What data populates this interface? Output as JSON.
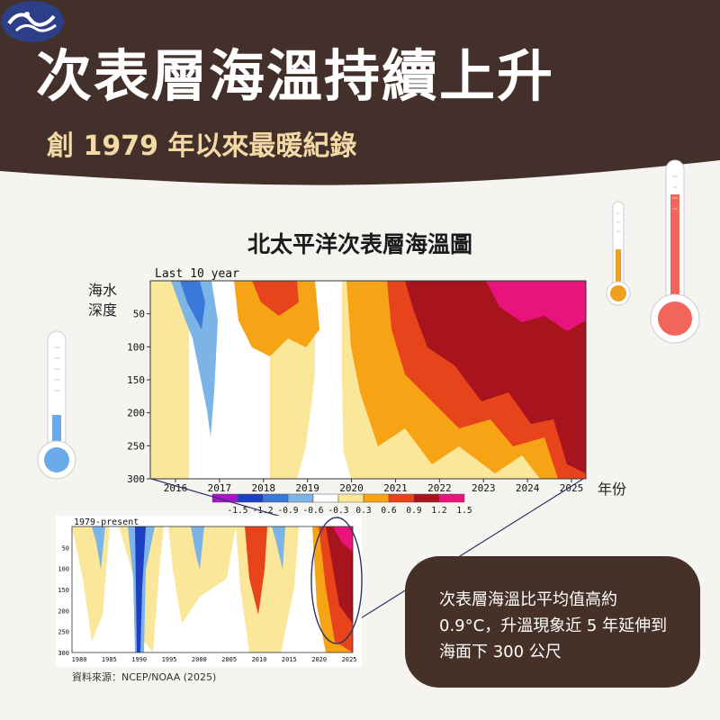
{
  "header": {
    "title": "次表層海溫持續上升",
    "subtitle": "創 1979 年以來最暖紀錄"
  },
  "chart_title": "北太平洋次表層海溫圖",
  "icons": [
    "thermometer-icon-small",
    "thermometer-icon-large",
    "thermometer-icon-left",
    "cwa-logo-icon"
  ],
  "colors": {
    "header_bg": "#43302a",
    "subtitle": "#f3d9a6",
    "callout_bg": "#453127"
  },
  "callout": {
    "text": "次表層海溫比平均值高約 0.9°C，升溫現象近 5 年延伸到海面下 300 公尺"
  },
  "source": "資料來源：NCEP/NOAA (2025)",
  "chart_data": [
    {
      "type": "heatmap",
      "inner_title": "Last 10 year",
      "ylabel": "海水\n深度",
      "xlabel": "年份",
      "x_ticks": [
        "2016",
        "2017",
        "2018",
        "2019",
        "2020",
        "2021",
        "2022",
        "2023",
        "2024",
        "2025"
      ],
      "y_ticks": [
        "50",
        "100",
        "150",
        "200",
        "250",
        "300"
      ],
      "ylim": [
        0,
        300
      ],
      "colorbar_labels": [
        "-1.5",
        "-1.2",
        "-0.9",
        "-0.6",
        "-0.3",
        "0.3",
        "0.6",
        "0.9",
        "1.2",
        "1.5"
      ],
      "colorbar_colors": [
        "#a316c9",
        "#1d3fc4",
        "#3a78d9",
        "#7cb4e8",
        "#ffffff",
        "#fbe79a",
        "#f6a316",
        "#e8441c",
        "#a8141e",
        "#e8147c"
      ],
      "summary": "Warm anomalies (0.3 to >1.5 °C) dominate from 2021 to 2025 and extend to 300 m depth"
    },
    {
      "type": "heatmap",
      "inner_title": "1979-present",
      "x_ticks": [
        "1980",
        "1985",
        "1990",
        "1995",
        "2000",
        "2005",
        "2010",
        "2015",
        "2020",
        "2025"
      ],
      "y_ticks": [
        "50",
        "100",
        "150",
        "200",
        "250",
        "300"
      ],
      "ylim": [
        0,
        300
      ]
    }
  ]
}
